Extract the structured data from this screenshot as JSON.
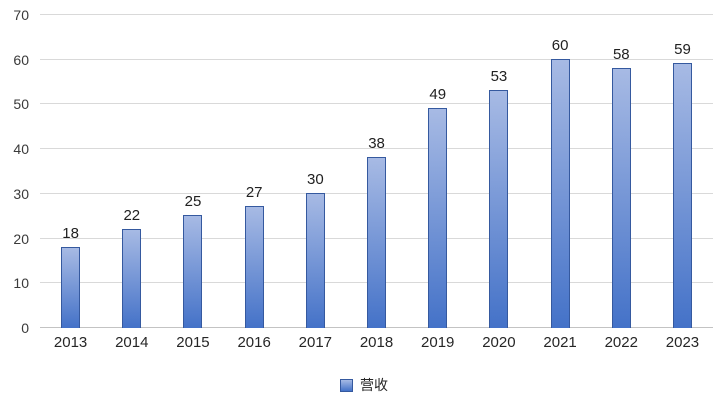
{
  "chart_data": {
    "type": "bar",
    "title": "",
    "categories": [
      "2013",
      "2014",
      "2015",
      "2016",
      "2017",
      "2018",
      "2019",
      "2020",
      "2021",
      "2022",
      "2023"
    ],
    "series": [
      {
        "name": "营收",
        "values": [
          18,
          22,
          25,
          27,
          30,
          38,
          49,
          53,
          60,
          58,
          59
        ]
      }
    ],
    "xlabel": "",
    "ylabel": "",
    "ylim": [
      0,
      70
    ],
    "yticks": [
      0,
      10,
      20,
      30,
      40,
      50,
      60,
      70
    ],
    "grid": true,
    "data_labels": true,
    "legend_position": "bottom"
  },
  "colors": {
    "bar_top": "#a7bae4",
    "bar_bottom": "#4472c8",
    "bar_border": "#35599f",
    "gridline": "#d9d9d9",
    "axis_line": "#c3c3c3",
    "tick_text": "#3a3a3a",
    "data_label_text": "#212121",
    "background": "#ffffff"
  }
}
